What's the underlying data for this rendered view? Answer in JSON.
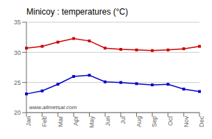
{
  "chart_data": {
    "type": "line",
    "title": "Minicoy : temperatures (°C)",
    "categories": [
      "Jan",
      "Feb",
      "Mar",
      "Apr",
      "May",
      "Jun",
      "Jul",
      "Aug",
      "Sep",
      "Oct",
      "Nov",
      "Dec"
    ],
    "series": [
      {
        "color": "#cc0000",
        "marker": "square",
        "values": [
          30.7,
          31.0,
          31.7,
          32.3,
          31.9,
          30.7,
          30.5,
          30.4,
          30.3,
          30.4,
          30.6,
          31.0
        ]
      },
      {
        "color": "#0000cc",
        "marker": "square",
        "values": [
          23.1,
          23.6,
          24.7,
          26.0,
          26.2,
          25.1,
          25.0,
          24.8,
          24.6,
          24.7,
          23.9,
          23.5
        ]
      }
    ],
    "ylim": [
      20,
      35
    ],
    "yticks": [
      20,
      25,
      30,
      35
    ],
    "grid": true,
    "annotations": [
      "www.allmetsat.com"
    ]
  }
}
